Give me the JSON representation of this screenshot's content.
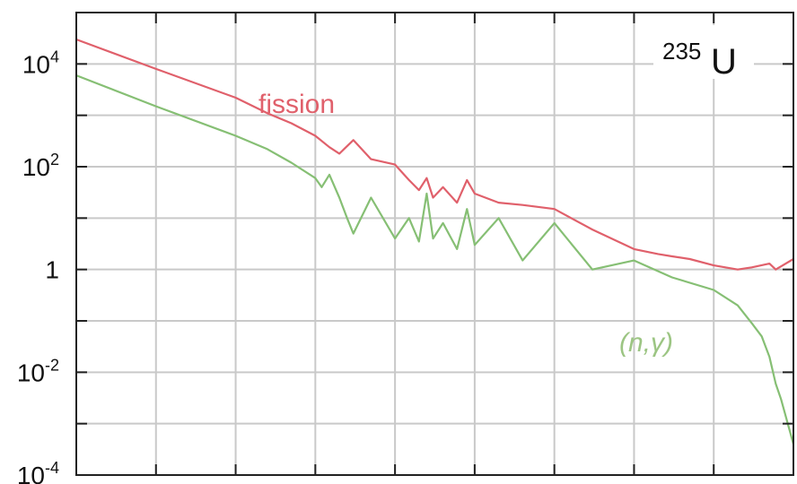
{
  "chart_data": {
    "type": "line",
    "title": "",
    "xlabel": "",
    "ylabel": "",
    "y_scale": "log",
    "ylim": [
      0.0001,
      100000
    ],
    "x_scale": "log",
    "xlim": [
      0.0001,
      100000
    ],
    "grid": true,
    "y_tick_labels": [
      {
        "value": 0.0001,
        "base": "10",
        "exp": "-4"
      },
      {
        "value": 0.01,
        "base": "10",
        "exp": "-2"
      },
      {
        "value": 1,
        "base": "1",
        "exp": ""
      },
      {
        "value": 100,
        "base": "10",
        "exp": "2"
      },
      {
        "value": 10000,
        "base": "10",
        "exp": "4"
      }
    ],
    "annotation": {
      "mass_number": "235",
      "symbol": "U"
    },
    "series": [
      {
        "name": "fission",
        "color": "#e0606b",
        "x": [
          0.0001,
          0.001,
          0.01,
          0.025,
          0.05,
          0.1,
          0.15,
          0.2,
          0.3,
          0.5,
          1,
          1.5,
          2,
          2.5,
          3,
          4,
          6,
          8,
          10,
          20,
          40,
          100,
          300,
          1000,
          2000,
          3000,
          5000,
          10000,
          20000,
          30000,
          50000,
          60000,
          100000
        ],
        "y": [
          30000,
          8000,
          2200,
          1100,
          700,
          400,
          240,
          180,
          330,
          140,
          110,
          55,
          35,
          60,
          25,
          40,
          20,
          55,
          30,
          20,
          18,
          15,
          6,
          2.5,
          2.0,
          1.8,
          1.6,
          1.2,
          1.0,
          1.1,
          1.3,
          1.0,
          1.6
        ]
      },
      {
        "name": "(n,γ)",
        "color": "#86bf74",
        "x": [
          0.0001,
          0.001,
          0.01,
          0.025,
          0.05,
          0.1,
          0.12,
          0.15,
          0.2,
          0.25,
          0.3,
          0.5,
          1,
          1.5,
          2,
          2.5,
          3,
          4,
          6,
          8,
          10,
          20,
          40,
          100,
          300,
          1000,
          3000,
          10000,
          20000,
          30000,
          40000,
          50000,
          60000,
          70000,
          100000
        ],
        "y": [
          6000,
          1500,
          400,
          220,
          120,
          60,
          40,
          70,
          25,
          10,
          5,
          25,
          4,
          10,
          3.5,
          30,
          4,
          8,
          2.5,
          15,
          3,
          10,
          1.5,
          8,
          1.0,
          1.5,
          0.7,
          0.4,
          0.2,
          0.09,
          0.05,
          0.02,
          0.006,
          0.003,
          0.0004
        ]
      }
    ]
  }
}
